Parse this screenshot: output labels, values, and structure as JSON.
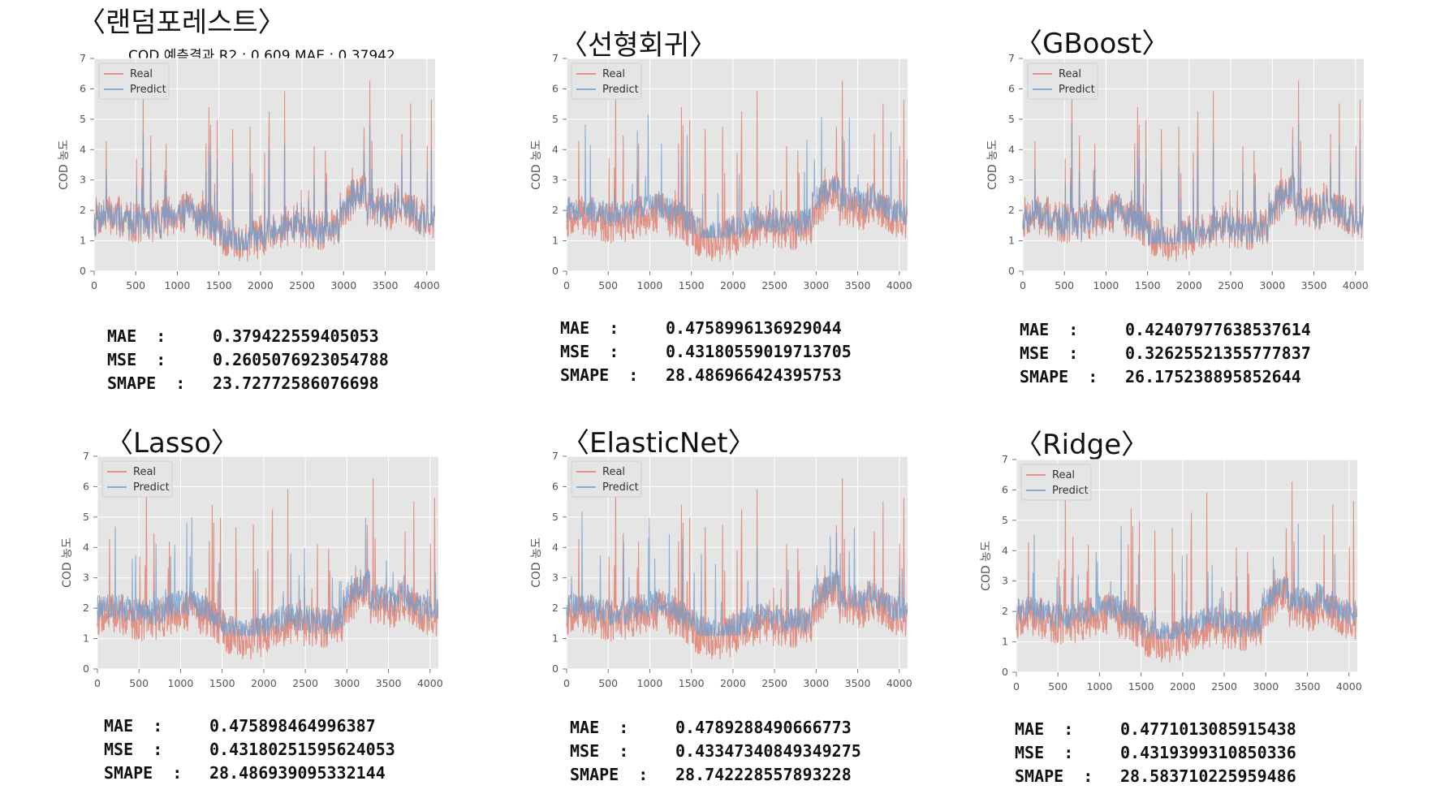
{
  "panels": [
    {
      "id": "rf",
      "title": "〈랜덤포레스트〉",
      "subtitle": "COD 예측결과   R2 : 0.609    MAE : 0.37942",
      "metrics": {
        "mae_label": "MAE  :",
        "mae": "0.379422559405053",
        "mse_label": "MSE  :",
        "mse": "0.2605076923054788",
        "smape_label": "SMAPE  :",
        "smape": "23.72772586076698"
      }
    },
    {
      "id": "lin",
      "title": "〈선형회귀〉",
      "subtitle": "",
      "metrics": {
        "mae_label": "MAE  :",
        "mae": "0.475899613692904​4",
        "mse_label": "MSE  :",
        "mse": "0.43180559019713705",
        "smape_label": "SMAPE  :",
        "smape": "28.486966424395753"
      }
    },
    {
      "id": "gb",
      "title": "〈GBoost〉",
      "subtitle": "",
      "metrics": {
        "mae_label": "MAE  :",
        "mae": "0.42407977638537614",
        "mse_label": "MSE  :",
        "mse": "0.32625521355777837",
        "smape_label": "SMAPE  :",
        "smape": "26.175238895852644"
      }
    },
    {
      "id": "lasso",
      "title": "〈Lasso〉",
      "subtitle": "",
      "metrics": {
        "mae_label": "MAE  :",
        "mae": "0.475898464996387",
        "mse_label": "MSE  :",
        "mse": "0.43180251595624053",
        "smape_label": "SMAPE  :",
        "smape": "28.486939095332144"
      }
    },
    {
      "id": "enet",
      "title": "〈ElasticNet〉",
      "subtitle": "",
      "metrics": {
        "mae_label": "MAE  :",
        "mae": "0.4789288490666773",
        "mse_label": "MSE  :",
        "mse": "0.43347340849349275",
        "smape_label": "SMAPE  :",
        "smape": "28.742228557893228"
      }
    },
    {
      "id": "ridge",
      "title": "〈Ridge〉",
      "subtitle": "",
      "metrics": {
        "mae_label": "MAE  :",
        "mae": "0.4771013085915438",
        "mse_label": "MSE  :",
        "mse": "0.4319399310850336",
        "smape_label": "SMAPE  :",
        "smape": "28.583710225959486"
      }
    }
  ],
  "chart_data": [
    {
      "panel": "rf",
      "type": "line",
      "ylabel": "COD 농도",
      "xlim": [
        0,
        4100
      ],
      "ylim": [
        0,
        7
      ],
      "xticks": [
        0,
        500,
        1000,
        1500,
        2000,
        2500,
        3000,
        3500,
        4000
      ],
      "yticks": [
        0,
        1,
        2,
        3,
        4,
        5,
        6,
        7
      ],
      "grid": true,
      "legend": "top-left",
      "series": [
        {
          "name": "Real",
          "color": "#e07b6a",
          "y_range": [
            0.3,
            7.0
          ]
        },
        {
          "name": "Predict",
          "color": "#6d9ccc",
          "y_range": [
            0.7,
            5.2
          ]
        }
      ]
    },
    {
      "panel": "lin",
      "type": "line",
      "ylabel": "COD 농도",
      "xlim": [
        0,
        4100
      ],
      "ylim": [
        0,
        7
      ],
      "xticks": [
        0,
        500,
        1000,
        1500,
        2000,
        2500,
        3000,
        3500,
        4000
      ],
      "yticks": [
        0,
        1,
        2,
        3,
        4,
        5,
        6,
        7
      ],
      "grid": true,
      "legend": "top-left",
      "series": [
        {
          "name": "Real",
          "color": "#e07b6a",
          "y_range": [
            0.3,
            7.0
          ]
        },
        {
          "name": "Predict",
          "color": "#6d9ccc",
          "y_range": [
            1.1,
            5.6
          ]
        }
      ]
    },
    {
      "panel": "gb",
      "type": "line",
      "ylabel": "COD 농도",
      "xlim": [
        0,
        4100
      ],
      "ylim": [
        0,
        7
      ],
      "xticks": [
        0,
        500,
        1000,
        1500,
        2000,
        2500,
        3000,
        3500,
        4000
      ],
      "yticks": [
        0,
        1,
        2,
        3,
        4,
        5,
        6,
        7
      ],
      "grid": true,
      "legend": "top-left",
      "series": [
        {
          "name": "Real",
          "color": "#e07b6a",
          "y_range": [
            0.3,
            7.0
          ]
        },
        {
          "name": "Predict",
          "color": "#6d9ccc",
          "y_range": [
            0.9,
            5.0
          ]
        }
      ]
    },
    {
      "panel": "lasso",
      "type": "line",
      "ylabel": "COD 농도",
      "xlim": [
        0,
        4100
      ],
      "ylim": [
        0,
        7
      ],
      "xticks": [
        0,
        500,
        1000,
        1500,
        2000,
        2500,
        3000,
        3500,
        4000
      ],
      "yticks": [
        0,
        1,
        2,
        3,
        4,
        5,
        6,
        7
      ],
      "grid": true,
      "legend": "top-left",
      "series": [
        {
          "name": "Real",
          "color": "#e07b6a",
          "y_range": [
            0.3,
            7.0
          ]
        },
        {
          "name": "Predict",
          "color": "#6d9ccc",
          "y_range": [
            1.1,
            5.6
          ]
        }
      ]
    },
    {
      "panel": "enet",
      "type": "line",
      "ylabel": "COD 농도",
      "xlim": [
        0,
        4100
      ],
      "ylim": [
        0,
        7
      ],
      "xticks": [
        0,
        500,
        1000,
        1500,
        2000,
        2500,
        3000,
        3500,
        4000
      ],
      "yticks": [
        0,
        1,
        2,
        3,
        4,
        5,
        6,
        7
      ],
      "grid": true,
      "legend": "top-left",
      "series": [
        {
          "name": "Real",
          "color": "#e07b6a",
          "y_range": [
            0.3,
            7.0
          ]
        },
        {
          "name": "Predict",
          "color": "#6d9ccc",
          "y_range": [
            1.1,
            5.5
          ]
        }
      ]
    },
    {
      "panel": "ridge",
      "type": "line",
      "ylabel": "COD 농도",
      "xlim": [
        0,
        4100
      ],
      "ylim": [
        0,
        7
      ],
      "xticks": [
        0,
        500,
        1000,
        1500,
        2000,
        2500,
        3000,
        3500,
        4000
      ],
      "yticks": [
        0,
        1,
        2,
        3,
        4,
        5,
        6,
        7
      ],
      "grid": true,
      "legend": "top-left",
      "series": [
        {
          "name": "Real",
          "color": "#e07b6a",
          "y_range": [
            0.3,
            7.0
          ]
        },
        {
          "name": "Predict",
          "color": "#6d9ccc",
          "y_range": [
            1.1,
            5.6
          ]
        }
      ]
    }
  ]
}
